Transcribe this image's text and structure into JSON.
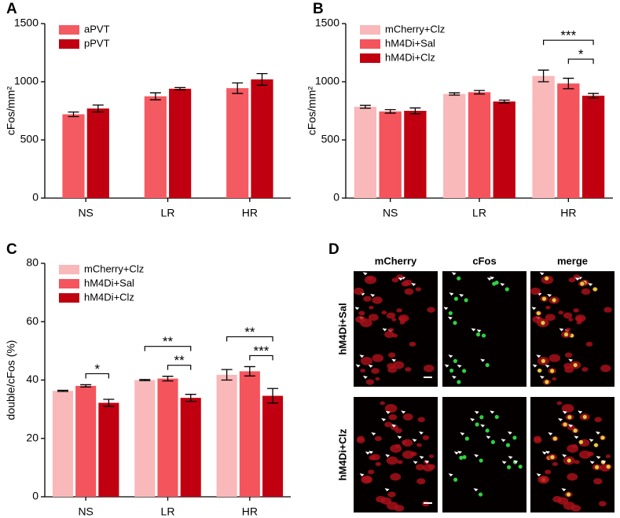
{
  "chart_data": [
    {
      "type": "bar",
      "panel": "A",
      "ylabel": "cFos/mm²",
      "categories": [
        "NS",
        "LR",
        "HR"
      ],
      "series": [
        {
          "name": "aPVT",
          "color": "#f45a62",
          "values": [
            720,
            875,
            945
          ],
          "errors": [
            20,
            30,
            45
          ]
        },
        {
          "name": "pPVT",
          "color": "#c00010",
          "values": [
            770,
            940,
            1020
          ],
          "errors": [
            30,
            10,
            50
          ]
        }
      ],
      "ylim": [
        0,
        1500
      ],
      "yticks": [
        0,
        500,
        1000,
        1500
      ],
      "legend": "upper left",
      "annotations": []
    },
    {
      "type": "bar",
      "panel": "B",
      "ylabel": "cFos/mm²",
      "categories": [
        "NS",
        "LR",
        "HR"
      ],
      "series": [
        {
          "name": "mCherry+Clz",
          "color": "#f9b8b9",
          "values": [
            785,
            895,
            1050
          ],
          "errors": [
            12,
            10,
            50
          ]
        },
        {
          "name": "hM4Di+Sal",
          "color": "#f4545c",
          "values": [
            745,
            910,
            985
          ],
          "errors": [
            15,
            15,
            45
          ]
        },
        {
          "name": "hM4Di+Clz",
          "color": "#c00010",
          "values": [
            750,
            830,
            880
          ],
          "errors": [
            25,
            12,
            20
          ]
        }
      ],
      "ylim": [
        0,
        1500
      ],
      "yticks": [
        0,
        500,
        1000,
        1500
      ],
      "legend": "upper left",
      "annotations": [
        {
          "text": "***",
          "category": "HR",
          "between": [
            "mCherry+Clz",
            "hM4Di+Clz"
          ]
        },
        {
          "text": "*",
          "category": "HR",
          "between": [
            "hM4Di+Sal",
            "hM4Di+Clz"
          ]
        }
      ]
    },
    {
      "type": "bar",
      "panel": "C",
      "ylabel": "double/cFos (%)",
      "categories": [
        "NS",
        "LR",
        "HR"
      ],
      "series": [
        {
          "name": "mCherry+Clz",
          "color": "#f9b8b9",
          "values": [
            36.3,
            40,
            41.8
          ],
          "errors": [
            0.2,
            0.2,
            1.8
          ]
        },
        {
          "name": "hM4Di+Sal",
          "color": "#f4545c",
          "values": [
            38,
            40.5,
            43
          ],
          "errors": [
            0.4,
            0.8,
            1.6
          ]
        },
        {
          "name": "hM4Di+Clz",
          "color": "#c00010",
          "values": [
            32.2,
            33.9,
            34.6
          ],
          "errors": [
            1.2,
            1.2,
            2.5
          ]
        }
      ],
      "ylim": [
        0,
        80
      ],
      "yticks": [
        0,
        20,
        40,
        60,
        80
      ],
      "legend": "upper left",
      "annotations": [
        {
          "text": "*",
          "category": "NS",
          "between": [
            "hM4Di+Sal",
            "hM4Di+Clz"
          ]
        },
        {
          "text": "**",
          "category": "LR",
          "between": [
            "mCherry+Clz",
            "hM4Di+Clz"
          ]
        },
        {
          "text": "**",
          "category": "LR",
          "between": [
            "hM4Di+Sal",
            "hM4Di+Clz"
          ]
        },
        {
          "text": "**",
          "category": "HR",
          "between": [
            "mCherry+Clz",
            "hM4Di+Clz"
          ]
        },
        {
          "text": "***",
          "category": "HR",
          "between": [
            "hM4Di+Sal",
            "hM4Di+Clz"
          ]
        }
      ]
    }
  ],
  "panel_d": {
    "panel": "D",
    "columns": [
      "mCherry",
      "cFos",
      "merge"
    ],
    "rows": [
      "hM4Di+Sal",
      "hM4Di+Clz"
    ]
  }
}
